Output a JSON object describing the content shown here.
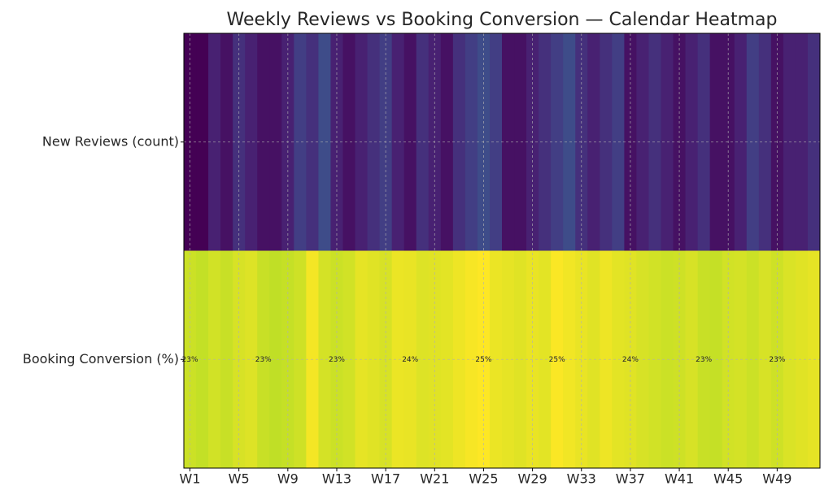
{
  "chart_data": {
    "type": "heatmap",
    "title": "Weekly Reviews vs Booking Conversion — Calendar Heatmap",
    "categories": [
      "W1",
      null,
      null,
      null,
      "W5",
      null,
      null,
      null,
      "W9",
      null,
      null,
      null,
      "W13",
      null,
      null,
      null,
      "W17",
      null,
      null,
      null,
      "W21",
      null,
      null,
      null,
      "W25",
      null,
      null,
      null,
      "W29",
      null,
      null,
      null,
      "W33",
      null,
      null,
      null,
      "W37",
      null,
      null,
      null,
      "W41",
      null,
      null,
      null,
      "W45",
      null,
      null,
      null,
      "W49",
      null,
      null,
      null
    ],
    "series": [
      {
        "name": "New Reviews (count)",
        "values": [
          3,
          3,
          5,
          4,
          6,
          5,
          4,
          4,
          5,
          7,
          6,
          8,
          5,
          4,
          5,
          6,
          7,
          5,
          4,
          6,
          5,
          4,
          6,
          7,
          8,
          7,
          4,
          4,
          5,
          6,
          7,
          8,
          6,
          5,
          6,
          7,
          4,
          5,
          6,
          5,
          4,
          5,
          6,
          4,
          4,
          5,
          7,
          6,
          4,
          5,
          5,
          6
        ]
      },
      {
        "name": "Booking Conversion (%)",
        "values": [
          23.2,
          22.9,
          23.4,
          23.1,
          23.6,
          23.8,
          23.1,
          22.8,
          23.0,
          23.3,
          24.6,
          23.5,
          23.2,
          23.4,
          24.1,
          23.9,
          23.6,
          24.3,
          24.2,
          23.8,
          23.9,
          24.0,
          24.4,
          24.7,
          24.9,
          24.3,
          24.1,
          23.9,
          24.2,
          24.0,
          24.8,
          24.5,
          24.2,
          23.9,
          24.4,
          24.0,
          23.9,
          23.6,
          23.4,
          23.2,
          23.3,
          23.6,
          23.1,
          23.0,
          23.4,
          23.5,
          23.2,
          23.6,
          23.3,
          23.7,
          23.9,
          24.1
        ],
        "value_labels": [
          "23%",
          null,
          null,
          null,
          null,
          null,
          "23%",
          null,
          null,
          null,
          null,
          null,
          "23%",
          null,
          null,
          null,
          null,
          null,
          "24%",
          null,
          null,
          null,
          null,
          null,
          "25%",
          null,
          null,
          null,
          null,
          null,
          "25%",
          null,
          null,
          null,
          null,
          null,
          "24%",
          null,
          null,
          null,
          null,
          null,
          "23%",
          null,
          null,
          null,
          null,
          null,
          "23%",
          null,
          null,
          null
        ]
      }
    ],
    "colormap": "viridis",
    "grid": true
  }
}
